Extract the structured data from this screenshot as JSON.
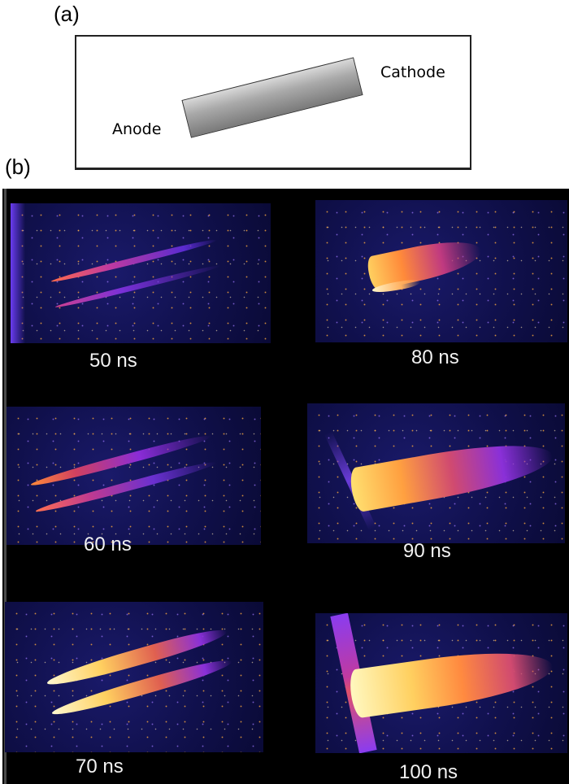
{
  "panel_a": {
    "label": "(a)",
    "cathode_label": "Cathode",
    "anode_label": "Anode"
  },
  "panel_b": {
    "label": "(b)",
    "frames": [
      {
        "time": "50 ns"
      },
      {
        "time": "80 ns"
      },
      {
        "time": "60 ns"
      },
      {
        "time": "90 ns"
      },
      {
        "time": "70 ns"
      },
      {
        "time": "100 ns"
      }
    ]
  },
  "colors": {
    "frame_background": "#10104c",
    "streak_dim": "#7a2cd6",
    "streak_mid": "#e0505a",
    "streak_hot": "#fff3a0"
  }
}
